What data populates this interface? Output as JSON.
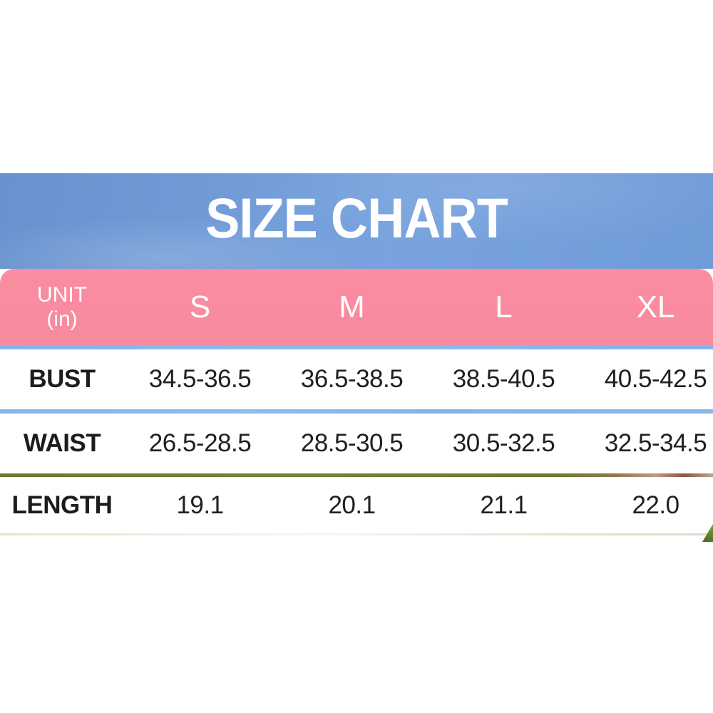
{
  "banner": {
    "title": "SIZE CHART"
  },
  "header": {
    "unit_line1": "UNIT",
    "unit_line2": "(in)",
    "sizes": [
      "S",
      "M",
      "L",
      "XL"
    ]
  },
  "chart_data": {
    "type": "table",
    "title": "SIZE CHART",
    "unit": "in",
    "columns": [
      "UNIT (in)",
      "S",
      "M",
      "L",
      "XL"
    ],
    "rows": [
      [
        "BUST",
        "34.5-36.5",
        "36.5-38.5",
        "38.5-40.5",
        "40.5-42.5"
      ],
      [
        "WAIST",
        "26.5-28.5",
        "28.5-30.5",
        "30.5-32.5",
        "32.5-34.5"
      ],
      [
        "LENGTH",
        "19.1",
        "20.1",
        "21.1",
        "22.0"
      ]
    ]
  },
  "colors": {
    "banner_blue": "#6f9bd8",
    "header_pink": "#f98da0",
    "strip_sky_blue": "#87b4ea",
    "strip_grass_olive": "#6f7c31",
    "text_dark": "#1e1e1e",
    "text_white": "#ffffff",
    "leaf_green": "#5d7c2c",
    "background_white": "#ffffff"
  }
}
